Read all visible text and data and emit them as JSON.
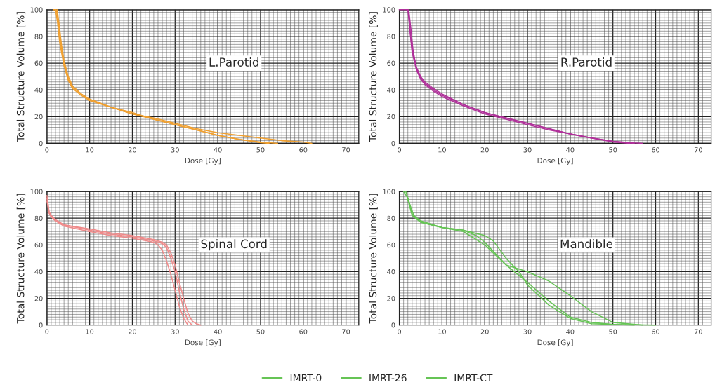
{
  "chart_data": [
    {
      "type": "line",
      "annotations": [
        "L.Parotid"
      ],
      "xlabel": "Dose [Gy]",
      "ylabel": "Total Structure Volume [%]",
      "xlim": [
        0,
        73
      ],
      "ylim": [
        0,
        100
      ],
      "xticks": [
        0,
        10,
        20,
        30,
        40,
        50,
        60,
        70
      ],
      "yticks": [
        0,
        20,
        40,
        60,
        80,
        100
      ],
      "grid": true,
      "series": [
        {
          "color": "#f0a030",
          "x": [
            1.5,
            2,
            2.5,
            3,
            4,
            5,
            6,
            8,
            10,
            15,
            20,
            25,
            30,
            35,
            40,
            45,
            50,
            52
          ],
          "values": [
            100,
            100,
            90,
            75,
            58,
            47,
            41,
            36,
            32,
            27,
            22,
            18,
            14,
            10,
            6,
            3,
            0.5,
            0
          ]
        },
        {
          "color": "#f0a030",
          "x": [
            1.5,
            2.2,
            2.7,
            3.2,
            4,
            5,
            6,
            8,
            10,
            15,
            20,
            25,
            30,
            35,
            40,
            45,
            50,
            55,
            60,
            62
          ],
          "values": [
            100,
            100,
            90,
            75,
            60,
            48,
            42,
            37,
            33,
            27,
            22,
            19,
            15,
            11,
            8,
            6,
            4,
            2,
            1,
            0
          ]
        },
        {
          "color": "#f0a030",
          "x": [
            2.4,
            2.9,
            3.4,
            4,
            5,
            6,
            8,
            10,
            15,
            20,
            25,
            30,
            35,
            40,
            45,
            50,
            54
          ],
          "values": [
            100,
            88,
            74,
            62,
            50,
            43,
            37,
            33,
            27,
            23,
            18,
            14,
            10,
            6,
            3,
            1,
            0
          ]
        }
      ]
    },
    {
      "type": "line",
      "annotations": [
        "R.Parotid"
      ],
      "xlabel": "Dose [Gy]",
      "ylabel": "Total Structure Volume [%]",
      "xlim": [
        0,
        73
      ],
      "ylim": [
        0,
        100
      ],
      "xticks": [
        0,
        10,
        20,
        30,
        40,
        50,
        60,
        70
      ],
      "yticks": [
        0,
        20,
        40,
        60,
        80,
        100
      ],
      "grid": true,
      "series": [
        {
          "color": "#b0309a",
          "x": [
            0,
            2,
            2.5,
            3,
            4,
            5,
            6,
            8,
            10,
            15,
            20,
            25,
            30,
            35,
            40,
            45,
            50,
            55,
            57
          ],
          "values": [
            100,
            100,
            85,
            70,
            57,
            50,
            46,
            41,
            37,
            29,
            23,
            19,
            15,
            11,
            7,
            4,
            1.5,
            0.3,
            0
          ]
        },
        {
          "color": "#b0309a",
          "x": [
            2.1,
            2.5,
            3,
            4,
            5,
            6,
            8,
            10,
            15,
            20,
            25,
            30,
            35,
            40,
            45,
            50,
            55
          ],
          "values": [
            100,
            84,
            68,
            55,
            48,
            44,
            39,
            35,
            28,
            22,
            18,
            14,
            10,
            7,
            4,
            1.5,
            0
          ]
        },
        {
          "color": "#b0309a",
          "x": [
            2.2,
            2.7,
            3.2,
            4,
            5,
            6,
            8,
            10,
            15,
            20,
            25,
            30,
            35,
            40,
            45,
            50,
            54
          ],
          "values": [
            100,
            86,
            70,
            56,
            49,
            45,
            40,
            36,
            29,
            23,
            19,
            15,
            11,
            7,
            4,
            1,
            0
          ]
        }
      ]
    },
    {
      "type": "line",
      "annotations": [
        "Spinal Cord"
      ],
      "xlabel": "Dose [Gy]",
      "ylabel": "Total Structure Volume [%]",
      "xlim": [
        0,
        73
      ],
      "ylim": [
        0,
        100
      ],
      "xticks": [
        0,
        10,
        20,
        30,
        40,
        50,
        60,
        70
      ],
      "yticks": [
        0,
        20,
        40,
        60,
        80,
        100
      ],
      "grid": true,
      "series": [
        {
          "color": "#f08a8a",
          "x": [
            0,
            0.5,
            1,
            2,
            4,
            10,
            15,
            20,
            25,
            27,
            28,
            29,
            30,
            31,
            32,
            33,
            34
          ],
          "values": [
            97,
            85,
            82,
            79,
            75,
            71,
            68,
            66,
            63,
            61,
            58,
            50,
            40,
            25,
            12,
            3,
            0
          ]
        },
        {
          "color": "#f08a8a",
          "x": [
            0,
            0.5,
            1,
            2,
            4,
            10,
            15,
            20,
            25,
            27,
            28,
            29,
            30,
            31,
            32,
            33,
            34,
            35,
            36
          ],
          "values": [
            95,
            84,
            81,
            78,
            75,
            72,
            69,
            67,
            64,
            62,
            60,
            54,
            45,
            32,
            20,
            9,
            3,
            1,
            0
          ]
        },
        {
          "color": "#f08a8a",
          "x": [
            0,
            0.5,
            1,
            2,
            4,
            10,
            15,
            20,
            25,
            26,
            27,
            28,
            29,
            30,
            31,
            32,
            33
          ],
          "values": [
            93,
            84,
            81,
            78,
            74,
            70,
            67,
            65,
            62,
            60,
            56,
            48,
            38,
            26,
            14,
            5,
            0
          ]
        }
      ]
    },
    {
      "type": "line",
      "annotations": [
        "Mandible"
      ],
      "xlabel": "Dose [Gy]",
      "ylabel": "Total Structure Volume [%]",
      "xlim": [
        0,
        73
      ],
      "ylim": [
        0,
        100
      ],
      "xticks": [
        0,
        10,
        20,
        30,
        40,
        50,
        60,
        70
      ],
      "yticks": [
        0,
        20,
        40,
        60,
        80,
        100
      ],
      "grid": true,
      "legend": "bottom",
      "series": [
        {
          "name": "IMRT-0",
          "color": "#66c455",
          "x": [
            1,
            2,
            3,
            5,
            10,
            15,
            20,
            22,
            25,
            28,
            30,
            35,
            40,
            45,
            50,
            55
          ],
          "values": [
            100,
            95,
            83,
            78,
            73,
            71,
            67,
            63,
            50,
            40,
            30,
            15,
            5,
            1,
            0.5,
            0
          ]
        },
        {
          "name": "IMRT-26",
          "color": "#66c455",
          "x": [
            1.5,
            2.5,
            3.5,
            5,
            10,
            15,
            18,
            20,
            25,
            30,
            35,
            40,
            45,
            50,
            57
          ],
          "values": [
            100,
            90,
            81,
            77,
            73,
            71,
            67,
            62,
            45,
            40,
            33,
            22,
            10,
            2,
            0
          ]
        },
        {
          "name": "IMRT-CT",
          "color": "#66c455",
          "x": [
            2,
            3,
            5,
            10,
            15,
            20,
            25,
            30,
            35,
            40,
            45,
            50,
            60
          ],
          "values": [
            94,
            82,
            77,
            73,
            70,
            60,
            45,
            32,
            18,
            6,
            2,
            0.5,
            0
          ]
        }
      ]
    }
  ]
}
